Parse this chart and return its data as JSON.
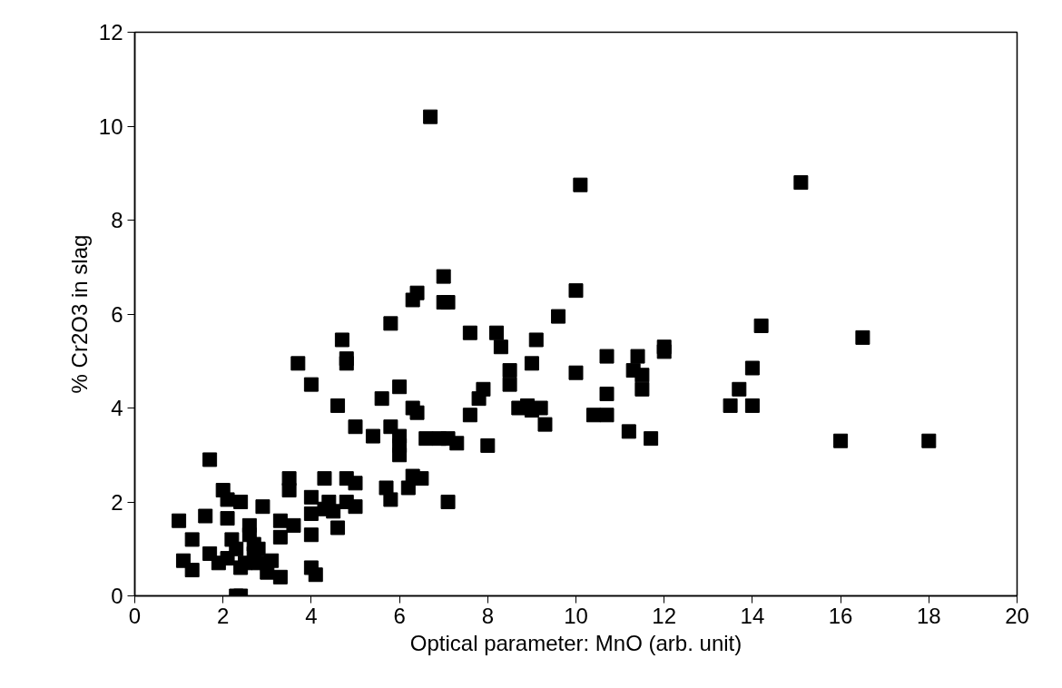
{
  "chart_data": {
    "type": "scatter",
    "xlabel": "Optical parameter: MnO (arb. unit)",
    "ylabel": "% Cr2O3 in slag",
    "xlim": [
      0,
      20
    ],
    "ylim": [
      0,
      12
    ],
    "xticks": [
      0,
      2,
      4,
      6,
      8,
      10,
      12,
      14,
      16,
      18,
      20
    ],
    "yticks": [
      0,
      2,
      4,
      6,
      8,
      10,
      12
    ],
    "grid": false,
    "marker": "square",
    "series": [
      {
        "color": "#000000",
        "x": [
          1.0,
          1.1,
          1.3,
          1.3,
          1.6,
          1.7,
          1.7,
          1.9,
          2.0,
          2.1,
          2.1,
          2.1,
          2.2,
          2.3,
          2.4,
          2.3,
          2.4,
          2.4,
          2.5,
          2.6,
          2.6,
          2.7,
          2.7,
          2.8,
          2.8,
          2.9,
          3.0,
          3.1,
          3.3,
          3.3,
          3.3,
          3.5,
          3.5,
          3.6,
          3.7,
          4.0,
          4.0,
          4.0,
          4.0,
          4.1,
          4.0,
          4.3,
          4.3,
          4.4,
          4.5,
          4.6,
          4.6,
          4.7,
          4.8,
          4.8,
          4.8,
          4.8,
          5.0,
          5.0,
          5.0,
          5.4,
          5.6,
          5.7,
          5.8,
          5.8,
          5.8,
          6.0,
          6.0,
          6.0,
          6.0,
          6.2,
          6.3,
          6.4,
          6.3,
          6.4,
          6.3,
          6.5,
          6.6,
          6.7,
          6.9,
          7.0,
          7.0,
          7.1,
          7.1,
          7.1,
          7.3,
          7.6,
          7.6,
          7.8,
          7.9,
          8.0,
          8.2,
          8.3,
          8.5,
          8.5,
          8.7,
          8.9,
          9.0,
          9.0,
          9.1,
          9.2,
          9.3,
          9.6,
          10.0,
          10.0,
          10.1,
          10.4,
          10.7,
          10.7,
          10.7,
          11.2,
          11.3,
          11.4,
          11.5,
          11.5,
          11.7,
          12.0,
          12.0,
          13.5,
          13.7,
          14.0,
          14.0,
          14.2,
          15.1,
          16.0,
          16.5,
          18.0
        ],
        "values": [
          1.6,
          0.75,
          1.2,
          0.55,
          1.7,
          0.9,
          2.9,
          0.7,
          2.25,
          1.65,
          2.05,
          0.8,
          1.2,
          0.0,
          0.0,
          1.0,
          2.0,
          0.6,
          0.7,
          1.5,
          1.3,
          1.1,
          0.9,
          0.7,
          1.0,
          1.9,
          0.5,
          0.75,
          0.4,
          1.25,
          1.6,
          2.25,
          2.5,
          1.5,
          4.95,
          2.1,
          1.75,
          1.3,
          0.6,
          0.45,
          4.5,
          2.5,
          1.85,
          2.0,
          1.8,
          1.45,
          4.05,
          5.45,
          5.05,
          4.95,
          2.5,
          2.0,
          2.4,
          1.9,
          3.6,
          3.4,
          4.2,
          2.3,
          2.05,
          3.6,
          5.8,
          4.45,
          3.4,
          3.0,
          3.2,
          2.3,
          6.3,
          6.45,
          4.0,
          3.9,
          2.55,
          2.5,
          3.35,
          10.2,
          3.35,
          6.8,
          6.25,
          6.25,
          3.35,
          2.0,
          3.25,
          5.6,
          3.85,
          4.2,
          4.4,
          3.2,
          5.6,
          5.3,
          4.8,
          4.5,
          4.0,
          4.05,
          4.95,
          3.95,
          5.45,
          4.0,
          3.65,
          5.95,
          4.75,
          6.5,
          8.75,
          3.85,
          3.85,
          5.1,
          4.3,
          3.5,
          4.8,
          5.1,
          4.7,
          4.4,
          3.35,
          5.2,
          5.3,
          4.05,
          4.4,
          4.05,
          4.85,
          5.75,
          8.8,
          3.3,
          5.5,
          3.3
        ]
      }
    ]
  }
}
